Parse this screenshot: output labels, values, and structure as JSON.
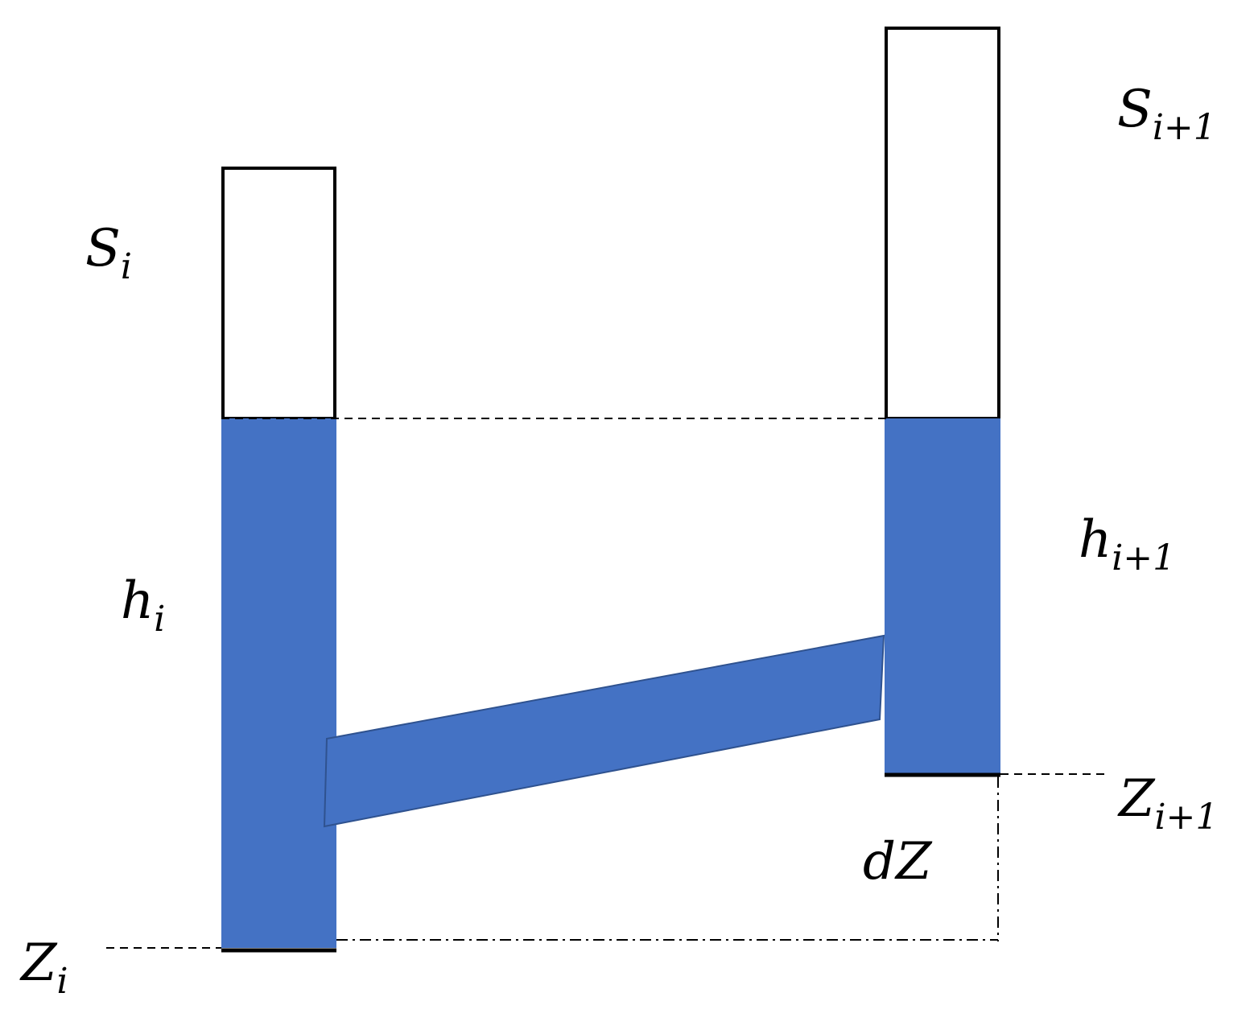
{
  "colors": {
    "water": "#4472C4",
    "water_edge": "#2F528F",
    "outline": "#000000",
    "background": "#FFFFFF"
  },
  "labels": {
    "s_i": {
      "base": "S",
      "sub": "i"
    },
    "s_i1": {
      "base": "S",
      "sub": "i+1"
    },
    "h_i": {
      "base": "h",
      "sub": "i"
    },
    "h_i1": {
      "base": "h",
      "sub": "i+1"
    },
    "z_i": {
      "base": "Z",
      "sub": "i"
    },
    "z_i1": {
      "base": "Z",
      "sub": "i+1"
    },
    "dz": {
      "base": "dZ"
    }
  }
}
